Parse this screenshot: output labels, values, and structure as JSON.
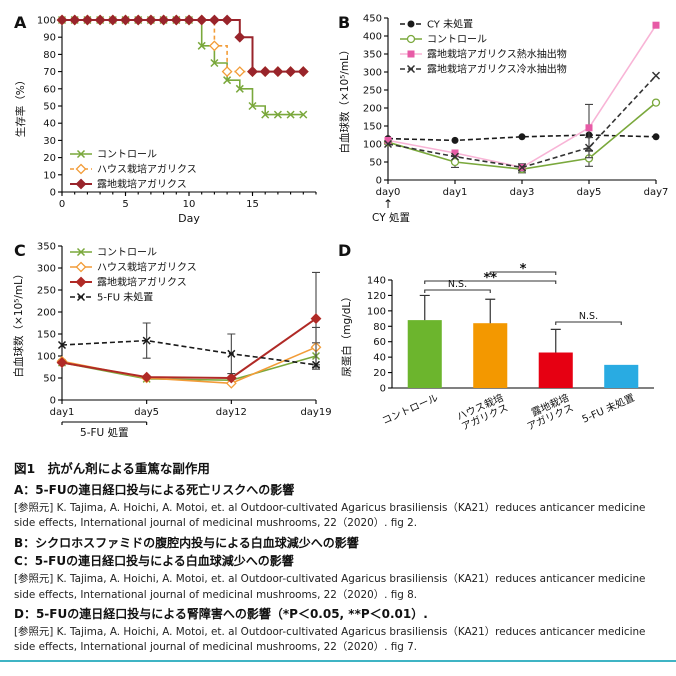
{
  "figure": {
    "title": "図1　抗がん剤による重篤な副作用",
    "caption_lines": [
      {
        "style": "heading",
        "text": "A：5-FUの連日経口投与による死亡リスクへの影響"
      },
      {
        "style": "ref",
        "text": "[参照元] K. Tajima, A. Hoichi, A. Motoi, et. al Outdoor-cultivated Agaricus brasiliensis（KA21）reduces anticancer medicine side effects, International journal of medicinal mushrooms, 22（2020）. fig 2."
      },
      {
        "style": "heading",
        "text": "B：シクロホスファミドの腹腔内投与による白血球減少への影響"
      },
      {
        "style": "heading",
        "text": "C：5-FUの連日経口投与による白血球減少への影響"
      },
      {
        "style": "ref",
        "text": "[参照元] K. Tajima, A. Hoichi, A. Motoi, et. al Outdoor-cultivated Agaricus brasiliensis（KA21）reduces anticancer medicine side effects, International journal of medicinal mushrooms, 22（2020）. fig 8."
      },
      {
        "style": "heading",
        "text": "D：5-FUの連日経口投与による腎障害への影響（*P＜0.05, **P＜0.01）."
      },
      {
        "style": "ref",
        "text": "[参照元] K. Tajima, A. Hoichi, A. Motoi, et. al Outdoor-cultivated Agaricus brasiliensis（KA21）reduces anticancer medicine side effects, International journal of medicinal mushrooms, 22（2020）. fig 7."
      }
    ],
    "accent_color": "#3fb4c4"
  },
  "chart_data": [
    {
      "id": "A",
      "panel_label": "A",
      "type": "line",
      "subtype": "step-survival",
      "xlabel": "Day",
      "ylabel": "生存率（%）",
      "xlim": [
        0,
        20
      ],
      "xticks": [
        0,
        5,
        10,
        15
      ],
      "ylim": [
        0,
        100
      ],
      "yticks": [
        0,
        10,
        20,
        30,
        40,
        50,
        60,
        70,
        80,
        90,
        100
      ],
      "legend_position": "inside-bottom-left",
      "series": [
        {
          "name": "コントロール",
          "color": "#7aa83c",
          "marker": "x",
          "x": [
            0,
            1,
            2,
            3,
            4,
            5,
            6,
            7,
            8,
            9,
            10,
            11,
            12,
            13,
            14,
            15,
            16,
            17,
            18,
            19
          ],
          "y": [
            100,
            100,
            100,
            100,
            100,
            100,
            100,
            100,
            100,
            100,
            100,
            85,
            75,
            65,
            60,
            50,
            45,
            45,
            45,
            45
          ]
        },
        {
          "name": "ハウス栽培アガリクス",
          "color": "#f29c38",
          "dash": "4,3",
          "marker": "diamond-open",
          "x": [
            0,
            1,
            2,
            3,
            4,
            5,
            6,
            7,
            8,
            9,
            10,
            11,
            12,
            13,
            14,
            15,
            16,
            17,
            18,
            19
          ],
          "y": [
            100,
            100,
            100,
            100,
            100,
            100,
            100,
            100,
            100,
            100,
            100,
            100,
            85,
            70,
            70,
            70,
            70,
            70,
            70,
            70
          ]
        },
        {
          "name": "露地栽培アガリクス",
          "color": "#99242b",
          "width": 2,
          "marker": "diamond-filled",
          "x": [
            0,
            1,
            2,
            3,
            4,
            5,
            6,
            7,
            8,
            9,
            10,
            11,
            12,
            13,
            14,
            15,
            16,
            17,
            18,
            19
          ],
          "y": [
            100,
            100,
            100,
            100,
            100,
            100,
            100,
            100,
            100,
            100,
            100,
            100,
            100,
            100,
            90,
            70,
            70,
            70,
            70,
            70
          ]
        }
      ]
    },
    {
      "id": "B",
      "panel_label": "B",
      "type": "line",
      "ylabel": "白血球数（×10⁵/mL）",
      "categories": [
        "day0",
        "day1",
        "day3",
        "day5",
        "day7"
      ],
      "ylim": [
        0,
        450
      ],
      "yticks": [
        0,
        50,
        100,
        150,
        200,
        250,
        300,
        350,
        400,
        450
      ],
      "legend_position": "inside-top-left",
      "series": [
        {
          "name": "CY 未処置",
          "color": "#1a1a1a",
          "dash": "5,3",
          "marker": "circle-filled",
          "y": [
            115,
            110,
            120,
            125,
            120
          ]
        },
        {
          "name": "コントロール",
          "color": "#7aa83c",
          "marker": "circle-open",
          "y": [
            105,
            50,
            30,
            60,
            215
          ],
          "err": [
            null,
            15,
            10,
            22,
            null
          ]
        },
        {
          "name": "露地栽培アガリクス熱水抽出物",
          "color": "#e75ba6",
          "line_color": "#f8b4d6",
          "marker": "square-filled",
          "y": [
            110,
            75,
            35,
            145,
            430
          ],
          "err": [
            null,
            null,
            10,
            65,
            null
          ]
        },
        {
          "name": "露地栽培アガリクス冷水抽出物",
          "color": "#333333",
          "dash": "5,3",
          "marker": "x",
          "y": [
            100,
            65,
            35,
            90,
            290
          ],
          "err": [
            null,
            null,
            null,
            28,
            null
          ]
        }
      ],
      "annotations": [
        {
          "type": "x-arrow",
          "x_index": 0,
          "label": "CY 処置"
        }
      ]
    },
    {
      "id": "C",
      "panel_label": "C",
      "type": "line",
      "ylabel": "白血球数（×10⁵/mL）",
      "categories": [
        "day1",
        "day5",
        "day12",
        "day19"
      ],
      "ylim": [
        0,
        350
      ],
      "yticks": [
        0,
        50,
        100,
        150,
        200,
        250,
        300,
        350
      ],
      "legend_position": "inside-top-left",
      "series": [
        {
          "name": "コントロール",
          "color": "#7aa83c",
          "marker": "x",
          "y": [
            85,
            48,
            45,
            100
          ],
          "err": [
            null,
            null,
            null,
            30
          ]
        },
        {
          "name": "ハウス栽培アガリクス",
          "color": "#f29c38",
          "marker": "diamond-open",
          "y": [
            88,
            50,
            38,
            120
          ],
          "err": [
            null,
            null,
            null,
            45
          ]
        },
        {
          "name": "露地栽培アガリクス",
          "color": "#b02a26",
          "width": 2,
          "marker": "diamond-filled",
          "y": [
            85,
            52,
            50,
            185
          ],
          "err": [
            null,
            null,
            null,
            105
          ]
        },
        {
          "name": "5-FU 未処置",
          "color": "#1a1a1a",
          "dash": "5,3",
          "marker": "x",
          "y": [
            125,
            135,
            105,
            80
          ],
          "err": [
            null,
            40,
            45,
            null
          ]
        }
      ],
      "annotations": [
        {
          "type": "x-bracket",
          "from": 0,
          "to": 1,
          "label": "5-FU 処置"
        }
      ]
    },
    {
      "id": "D",
      "panel_label": "D",
      "type": "bar",
      "ylabel": "尿蛋白（mg/dL）",
      "categories": [
        "コントロール",
        "ハウス栽培\nアガリクス",
        "露地栽培\nアガリクス",
        "5-FU 未処置"
      ],
      "values": [
        88,
        84,
        46,
        30
      ],
      "errors": [
        32,
        31,
        30,
        null
      ],
      "colors": [
        "#6cb52d",
        "#f39800",
        "#e60012",
        "#29abe2"
      ],
      "ylim": [
        0,
        140
      ],
      "yticks": [
        0,
        20,
        40,
        60,
        80,
        100,
        120,
        140
      ],
      "significance": [
        {
          "label": "*",
          "from": 1,
          "to": 2,
          "level": 0
        },
        {
          "label": "**",
          "from": 0,
          "to": 2,
          "level": 1
        },
        {
          "label": "N.S.",
          "from": 0,
          "to": 1,
          "level": 2
        },
        {
          "label": "N.S.",
          "from": 2,
          "to": 3,
          "level": 3
        }
      ]
    }
  ]
}
